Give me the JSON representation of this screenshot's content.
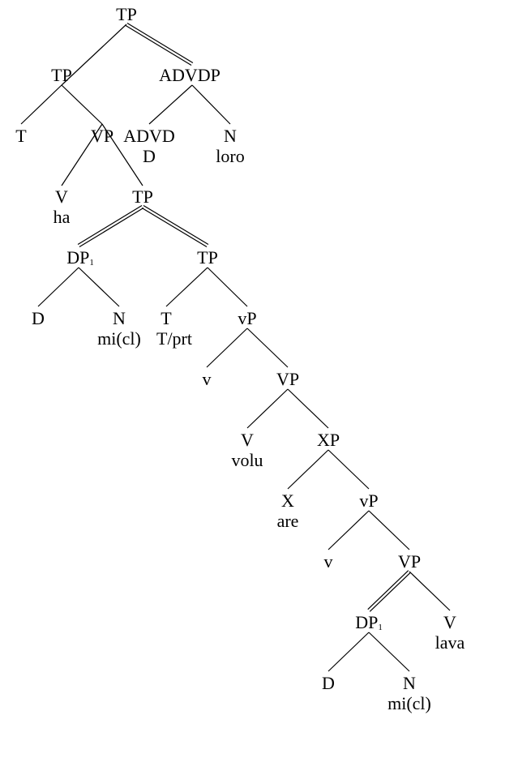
{
  "tree": {
    "nodes": [
      {
        "id": "n1",
        "text": "TP"
      },
      {
        "id": "n2",
        "text": "TP"
      },
      {
        "id": "n3",
        "text": "ADVDP"
      },
      {
        "id": "n4",
        "text": "T"
      },
      {
        "id": "n5",
        "text": "VP"
      },
      {
        "id": "n6",
        "text": "ADVD"
      },
      {
        "id": "n6b",
        "text": "D"
      },
      {
        "id": "n7",
        "text": "N"
      },
      {
        "id": "n7b",
        "text": "loro"
      },
      {
        "id": "n8",
        "text": "V"
      },
      {
        "id": "n8b",
        "text": "ha"
      },
      {
        "id": "n9",
        "text": "TP"
      },
      {
        "id": "n10",
        "text": "DP",
        "sub": "1"
      },
      {
        "id": "n11",
        "text": "TP"
      },
      {
        "id": "n12",
        "text": "D"
      },
      {
        "id": "n13",
        "text": "N"
      },
      {
        "id": "n13b",
        "text": "mi(cl)"
      },
      {
        "id": "n14",
        "text": "T/prt"
      },
      {
        "id": "n15",
        "text": "vP"
      },
      {
        "id": "n15t",
        "text": "T"
      },
      {
        "id": "n16",
        "text": "v"
      },
      {
        "id": "n17",
        "text": "VP"
      },
      {
        "id": "n18",
        "text": "V"
      },
      {
        "id": "n18b",
        "text": "volu"
      },
      {
        "id": "n19",
        "text": "XP"
      },
      {
        "id": "n20",
        "text": "X"
      },
      {
        "id": "n20b",
        "text": "are"
      },
      {
        "id": "n21",
        "text": "vP"
      },
      {
        "id": "n22",
        "text": "v"
      },
      {
        "id": "n23",
        "text": "VP"
      },
      {
        "id": "n24",
        "text": "DP",
        "sub": "1"
      },
      {
        "id": "n25",
        "text": "V"
      },
      {
        "id": "n25b",
        "text": "lava"
      },
      {
        "id": "n26",
        "text": "D"
      },
      {
        "id": "n27",
        "text": "N"
      },
      {
        "id": "n27b",
        "text": "mi(cl)"
      }
    ],
    "edges": [
      {
        "from": "n1",
        "to": "n2",
        "style": "single"
      },
      {
        "from": "n1",
        "to": "n3",
        "style": "double"
      },
      {
        "from": "n2",
        "to": "n4",
        "style": "single"
      },
      {
        "from": "n2",
        "to": "n5",
        "style": "single"
      },
      {
        "from": "n3",
        "to": "n6",
        "style": "single"
      },
      {
        "from": "n3",
        "to": "n7",
        "style": "single"
      },
      {
        "from": "n5",
        "to": "n8",
        "style": "single"
      },
      {
        "from": "n5",
        "to": "n9",
        "style": "single"
      },
      {
        "from": "n9",
        "to": "n10",
        "style": "double"
      },
      {
        "from": "n9",
        "to": "n11",
        "style": "double"
      },
      {
        "from": "n10",
        "to": "n12",
        "style": "single"
      },
      {
        "from": "n10",
        "to": "n13",
        "style": "single"
      },
      {
        "from": "n11",
        "to": "n15t",
        "style": "single"
      },
      {
        "from": "n11",
        "to": "n15",
        "style": "single"
      },
      {
        "from": "n15",
        "to": "n16",
        "style": "single"
      },
      {
        "from": "n15",
        "to": "n17",
        "style": "single"
      },
      {
        "from": "n17",
        "to": "n18",
        "style": "single"
      },
      {
        "from": "n17",
        "to": "n19",
        "style": "single"
      },
      {
        "from": "n19",
        "to": "n20",
        "style": "single"
      },
      {
        "from": "n19",
        "to": "n21",
        "style": "single"
      },
      {
        "from": "n21",
        "to": "n22",
        "style": "single"
      },
      {
        "from": "n21",
        "to": "n23",
        "style": "single"
      },
      {
        "from": "n23",
        "to": "n24",
        "style": "double"
      },
      {
        "from": "n23",
        "to": "n25",
        "style": "single"
      },
      {
        "from": "n24",
        "to": "n26",
        "style": "single"
      },
      {
        "from": "n24",
        "to": "n27",
        "style": "single"
      }
    ]
  }
}
